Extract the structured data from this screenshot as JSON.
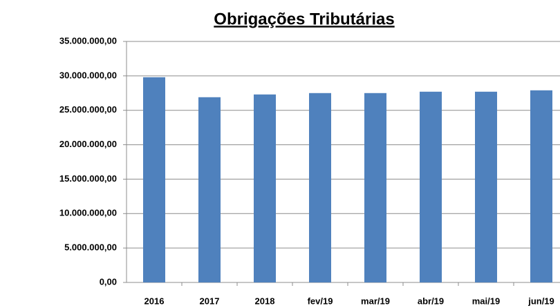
{
  "chart_data": {
    "type": "bar",
    "title": "Obrigações Tributárias",
    "categories": [
      "2016",
      "2017",
      "2018",
      "fev/19",
      "mar/19",
      "abr/19",
      "mai/19",
      "jun/19"
    ],
    "values": [
      29800000,
      26900000,
      27300000,
      27500000,
      27500000,
      27700000,
      27700000,
      27900000
    ],
    "color": "#4f81bd",
    "ylim": [
      0,
      35000000
    ],
    "yticks": [
      {
        "value": 0,
        "label": "0,00"
      },
      {
        "value": 5000000,
        "label": "5.000.000,00"
      },
      {
        "value": 10000000,
        "label": "10.000.000,00"
      },
      {
        "value": 15000000,
        "label": "15.000.000,00"
      },
      {
        "value": 20000000,
        "label": "20.000.000,00"
      },
      {
        "value": 25000000,
        "label": "25.000.000,00"
      },
      {
        "value": 30000000,
        "label": "30.000.000,00"
      },
      {
        "value": 35000000,
        "label": "35.000.000,00"
      }
    ],
    "grid": true
  }
}
